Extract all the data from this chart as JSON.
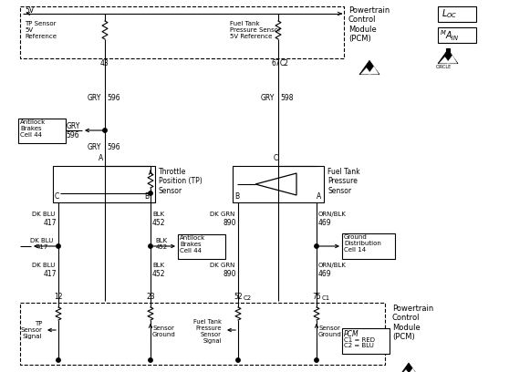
{
  "bg_color": "#ffffff",
  "line_color": "#000000",
  "text_color": "#000000",
  "fig_width": 5.81,
  "fig_height": 4.08,
  "top_pcm_label": "Powertrain\nControl\nModule\n(PCM)",
  "bot_pcm_label": "Powertrain\nControl\nModule\n(PCM)",
  "loc_label": "L₀C",
  "main_label": "Mₐᴵₙ",
  "tp_sensor_label": "Throttle\nPosition (TP)\nSensor",
  "ft_sensor_label": "Fuel Tank\nPressure\nSensor",
  "antilock_label": "Antilock\nBrakes\nCell 44",
  "gnd_dist_label": "Ground\nDistribution\nCell 14",
  "pcm_legend": "PCM\nC1 = RED\nC2 = BLU"
}
